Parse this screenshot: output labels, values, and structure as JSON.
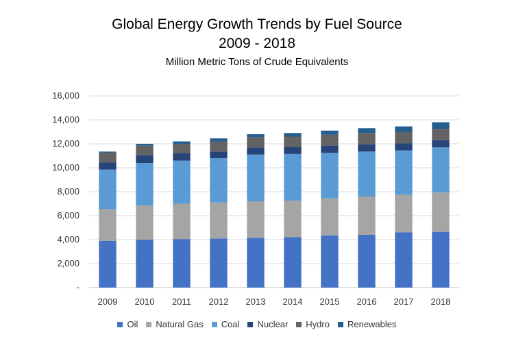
{
  "chart_data": {
    "type": "bar",
    "stacked": true,
    "title": "Global Energy Growth Trends by Fuel Source",
    "title_line2": "2009 - 2018",
    "subtitle": "Million Metric Tons of Crude Equivalents",
    "xlabel": "",
    "ylabel": "",
    "ylim": [
      0,
      16000
    ],
    "yticks": [
      "-",
      "2,000",
      "4,000",
      "6,000",
      "8,000",
      "10,000",
      "12,000",
      "14,000",
      "16,000"
    ],
    "grid": true,
    "legend_position": "bottom",
    "categories": [
      "2009",
      "2010",
      "2011",
      "2012",
      "2013",
      "2014",
      "2015",
      "2016",
      "2017",
      "2018"
    ],
    "series": [
      {
        "name": "Oil",
        "color": "#4472C4",
        "values": [
          3900,
          4000,
          4050,
          4100,
          4150,
          4200,
          4350,
          4400,
          4600,
          4650
        ]
      },
      {
        "name": "Natural Gas",
        "color": "#A5A5A5",
        "values": [
          2650,
          2850,
          2950,
          3000,
          3050,
          3050,
          3100,
          3200,
          3150,
          3300
        ]
      },
      {
        "name": "Coal",
        "color": "#5B9BD5",
        "values": [
          3300,
          3550,
          3600,
          3700,
          3900,
          3900,
          3800,
          3750,
          3700,
          3750
        ]
      },
      {
        "name": "Nuclear",
        "color": "#264478",
        "values": [
          600,
          650,
          600,
          550,
          600,
          600,
          600,
          600,
          600,
          600
        ]
      },
      {
        "name": "Hydro",
        "color": "#636363",
        "values": [
          800,
          800,
          800,
          850,
          850,
          850,
          900,
          950,
          950,
          950
        ]
      },
      {
        "name": "Renewables",
        "color": "#255E91",
        "values": [
          100,
          150,
          200,
          250,
          250,
          300,
          350,
          400,
          450,
          550
        ]
      }
    ]
  }
}
